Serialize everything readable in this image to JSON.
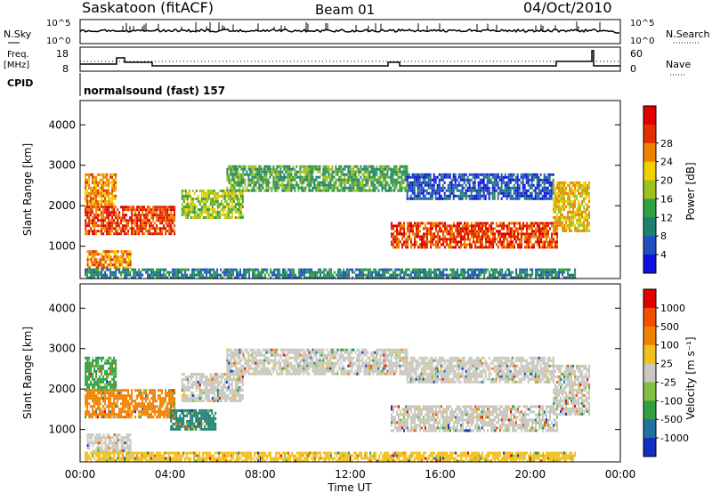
{
  "header": {
    "station": "Saskatoon (fitACF)",
    "beam": "Beam 01",
    "date": "04/Oct/2010"
  },
  "noise_panel": {
    "left_label": "N.Sky",
    "right_label": "N.Search",
    "left_ticks": [
      "10^5",
      "10^0"
    ],
    "right_ticks": [
      "10^5",
      "10^0"
    ]
  },
  "freq_panel": {
    "left_label_line1": "Freq.",
    "left_label_line2": "[MHz]",
    "right_label": "Nave",
    "left_ticks": [
      "18",
      "8"
    ],
    "right_ticks": [
      "60",
      "0"
    ]
  },
  "cpid": {
    "label": "CPID",
    "value": "normalsound (fast) 157"
  },
  "chart_data": [
    {
      "type": "heatmap",
      "name_from_colorbar": "Power [dB]",
      "xlabel": "",
      "ylabel": "Slant Range [km]",
      "y_ticks": [
        "1000",
        "2000",
        "3000",
        "4000"
      ],
      "ylim": [
        200,
        4600
      ],
      "xlim_hours": [
        0,
        24
      ],
      "colorbar": {
        "label": "Power [dB]",
        "ticks": [
          "4",
          "8",
          "12",
          "16",
          "20",
          "24",
          "28"
        ],
        "colors": [
          "#1010e0",
          "#2050c0",
          "#208070",
          "#30a040",
          "#a0c020",
          "#f0d000",
          "#f08000",
          "#e03000",
          "#e00000"
        ]
      },
      "echo_regions": [
        {
          "t0": 0.2,
          "t1": 1.6,
          "r0": 2000,
          "r1": 2800,
          "level": 6
        },
        {
          "t0": 0.2,
          "t1": 4.2,
          "r0": 1300,
          "r1": 2000,
          "level": 7
        },
        {
          "t0": 0.3,
          "t1": 2.2,
          "r0": 500,
          "r1": 900,
          "level": 6
        },
        {
          "t0": 4.5,
          "t1": 7.2,
          "r0": 1700,
          "r1": 2400,
          "level": 4
        },
        {
          "t0": 6.5,
          "t1": 14.5,
          "r0": 2400,
          "r1": 3000,
          "level": 3
        },
        {
          "t0": 13.8,
          "t1": 21.2,
          "r0": 1000,
          "r1": 1600,
          "level": 7
        },
        {
          "t0": 14.5,
          "t1": 21.0,
          "r0": 2200,
          "r1": 2800,
          "level": 1
        },
        {
          "t0": 21.0,
          "t1": 22.6,
          "r0": 1400,
          "r1": 2600,
          "level": 5
        },
        {
          "t0": 0.2,
          "t1": 22.0,
          "r0": 250,
          "r1": 450,
          "level": 2
        }
      ]
    },
    {
      "type": "heatmap",
      "name_from_colorbar": "Velocity [m s-1]",
      "xlabel": "Time UT",
      "ylabel": "Slant Range [km]",
      "y_ticks": [
        "1000",
        "2000",
        "3000",
        "4000"
      ],
      "ylim": [
        200,
        4600
      ],
      "x_ticks": [
        "00:00",
        "04:00",
        "08:00",
        "12:00",
        "16:00",
        "20:00",
        "00:00"
      ],
      "xlim_hours": [
        0,
        24
      ],
      "colorbar": {
        "label": "Velocity [m s⁻¹]",
        "ticks": [
          "1000",
          "500",
          "100",
          "25",
          "-25",
          "-100",
          "-500",
          "-1000"
        ],
        "colors": [
          "#1030c0",
          "#2070a0",
          "#30a040",
          "#80c040",
          "#c8c8c0",
          "#f0c020",
          "#f08000",
          "#f05000",
          "#e00000"
        ]
      },
      "echo_regions": [
        {
          "t0": 0.2,
          "t1": 1.6,
          "r0": 2000,
          "r1": 2800,
          "color": "#30a040"
        },
        {
          "t0": 0.2,
          "t1": 4.2,
          "r0": 1300,
          "r1": 2000,
          "color": "#f08000"
        },
        {
          "t0": 0.3,
          "t1": 2.2,
          "r0": 500,
          "r1": 900,
          "color": "#c8c8c0"
        },
        {
          "t0": 4.5,
          "t1": 7.2,
          "r0": 1700,
          "r1": 2400,
          "color": "#c8c8c0"
        },
        {
          "t0": 6.5,
          "t1": 14.5,
          "r0": 2400,
          "r1": 3000,
          "color": "#c8c8c0"
        },
        {
          "t0": 13.8,
          "t1": 21.2,
          "r0": 1000,
          "r1": 1600,
          "color": "#c8c8c0"
        },
        {
          "t0": 14.5,
          "t1": 21.0,
          "r0": 2200,
          "r1": 2800,
          "color": "#c8c8c0"
        },
        {
          "t0": 21.0,
          "t1": 22.6,
          "r0": 1400,
          "r1": 2600,
          "color": "#c8c8c0"
        },
        {
          "t0": 4.0,
          "t1": 6.0,
          "r0": 1000,
          "r1": 1500,
          "color": "#208070"
        },
        {
          "t0": 0.2,
          "t1": 22.0,
          "r0": 250,
          "r1": 450,
          "color": "#f0c020"
        }
      ]
    }
  ]
}
